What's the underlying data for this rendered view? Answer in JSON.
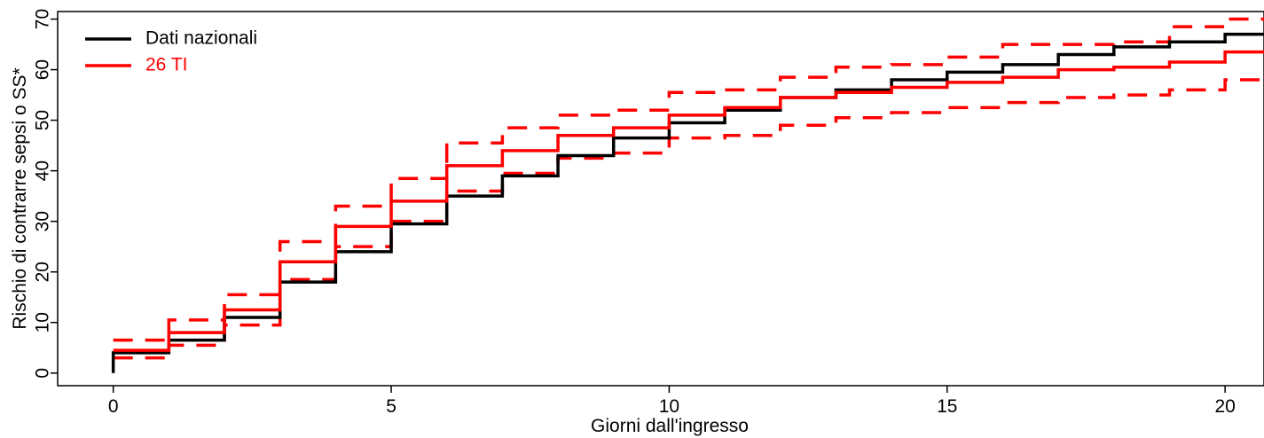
{
  "chart_data": {
    "type": "line",
    "step": true,
    "title": "",
    "xlabel": "Giorni dall'ingresso",
    "ylabel": "Rischio di contrarre sepsi o SS*",
    "xlim": [
      -1.0,
      20.7
    ],
    "ylim": [
      -2.5,
      71.5
    ],
    "xticks": [
      0,
      5,
      10,
      15,
      20
    ],
    "yticks": [
      0,
      10,
      20,
      30,
      40,
      50,
      60,
      70
    ],
    "grid": false,
    "legend_position": "top-left",
    "x": [
      0,
      1,
      2,
      3,
      4,
      5,
      6,
      7,
      8,
      9,
      10,
      11,
      12,
      13,
      14,
      15,
      16,
      17,
      18,
      19,
      20
    ],
    "series": [
      {
        "name": "Dati nazionali",
        "color": "#000000",
        "dash": "solid",
        "start": 0,
        "values": [
          4.0,
          6.5,
          11.0,
          18.0,
          24.0,
          29.5,
          35.0,
          39.0,
          43.0,
          46.5,
          49.5,
          52.0,
          54.5,
          56.0,
          58.0,
          59.5,
          61.0,
          63.0,
          64.5,
          65.5,
          67.0
        ]
      },
      {
        "name": "26 TI",
        "color": "#ff0000",
        "dash": "solid",
        "values": [
          4.5,
          8.0,
          12.5,
          22.0,
          29.0,
          34.0,
          41.0,
          44.0,
          47.0,
          48.5,
          51.0,
          52.5,
          54.5,
          55.5,
          56.5,
          57.5,
          58.5,
          60.0,
          60.5,
          61.5,
          63.5
        ]
      },
      {
        "name": "",
        "role": "upper-band",
        "color": "#ff0000",
        "dash": "dashed",
        "values": [
          6.5,
          10.5,
          15.5,
          26.0,
          33.0,
          38.5,
          45.5,
          48.5,
          51.0,
          52.0,
          55.5,
          56.0,
          58.5,
          60.5,
          61.0,
          62.5,
          65.0,
          65.0,
          65.5,
          68.5,
          70.0
        ]
      },
      {
        "name": "",
        "role": "lower-band",
        "color": "#ff0000",
        "dash": "dashed",
        "values": [
          3.0,
          5.5,
          9.5,
          18.5,
          25.0,
          30.0,
          36.0,
          39.5,
          42.5,
          43.5,
          46.5,
          47.0,
          49.0,
          50.5,
          51.5,
          52.5,
          53.5,
          54.5,
          55.0,
          56.0,
          58.0
        ]
      }
    ],
    "legend": [
      {
        "label": "Dati nazionali",
        "color": "#000000"
      },
      {
        "label": "26 TI",
        "color": "#ff0000"
      }
    ]
  }
}
